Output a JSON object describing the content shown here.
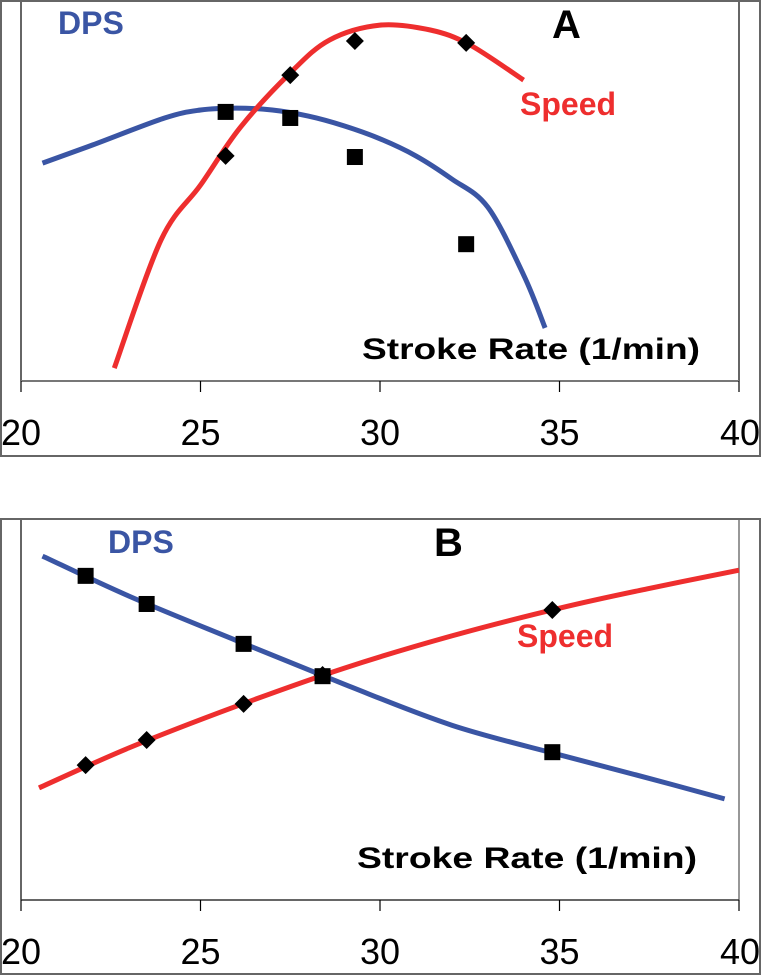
{
  "chart_data": [
    {
      "type": "line",
      "panel_label": "A",
      "xlabel": "Stroke Rate (1/min)",
      "ylabel": "",
      "xlim": [
        20,
        40
      ],
      "ylim": [
        0,
        100
      ],
      "y_units": "relative (no y-axis scale shown)",
      "x_ticks": [
        "20",
        "25",
        "30",
        "35",
        "40"
      ],
      "x_tick_values": [
        20,
        25,
        30,
        35,
        40
      ],
      "grid": false,
      "series": [
        {
          "name": "DPS",
          "color": "#3a55a4",
          "marker": "square",
          "points": [
            {
              "x": 25.7,
              "y": 71.0
            },
            {
              "x": 27.5,
              "y": 69.4
            },
            {
              "x": 29.3,
              "y": 59.1
            },
            {
              "x": 32.4,
              "y": 36.1
            }
          ],
          "curve": [
            {
              "x": 20.6,
              "y": 57.5
            },
            {
              "x": 22.0,
              "y": 62.3
            },
            {
              "x": 24.0,
              "y": 69.4
            },
            {
              "x": 25.0,
              "y": 71.5
            },
            {
              "x": 26.0,
              "y": 72.0
            },
            {
              "x": 27.0,
              "y": 71.5
            },
            {
              "x": 28.0,
              "y": 69.9
            },
            {
              "x": 29.0,
              "y": 67.3
            },
            {
              "x": 30.0,
              "y": 63.9
            },
            {
              "x": 31.0,
              "y": 59.4
            },
            {
              "x": 32.0,
              "y": 53.3
            },
            {
              "x": 33.0,
              "y": 45.9
            },
            {
              "x": 34.0,
              "y": 28.0
            },
            {
              "x": 34.6,
              "y": 14.0
            }
          ]
        },
        {
          "name": "Speed",
          "color": "#ee2e2e",
          "marker": "diamond",
          "points": [
            {
              "x": 25.7,
              "y": 59.4
            },
            {
              "x": 27.5,
              "y": 80.7
            },
            {
              "x": 29.3,
              "y": 89.7
            },
            {
              "x": 32.4,
              "y": 89.2
            }
          ],
          "curve": [
            {
              "x": 22.6,
              "y": 3.4
            },
            {
              "x": 23.9,
              "y": 37.2
            },
            {
              "x": 25.0,
              "y": 51.7
            },
            {
              "x": 26.1,
              "y": 66.8
            },
            {
              "x": 27.5,
              "y": 81.3
            },
            {
              "x": 28.6,
              "y": 90.0
            },
            {
              "x": 30.0,
              "y": 93.9
            },
            {
              "x": 31.4,
              "y": 92.6
            },
            {
              "x": 32.5,
              "y": 88.7
            },
            {
              "x": 34.0,
              "y": 79.4
            }
          ]
        }
      ],
      "annotations": [
        "DPS",
        "Speed",
        "A",
        "Stroke Rate (1/min)"
      ]
    },
    {
      "type": "line",
      "panel_label": "B",
      "xlabel": "Stroke Rate (1/min)",
      "ylabel": "",
      "xlim": [
        20,
        40
      ],
      "ylim": [
        0,
        100
      ],
      "y_units": "relative (no y-axis scale shown)",
      "x_ticks": [
        "20",
        "25",
        "30",
        "35",
        "40"
      ],
      "x_tick_values": [
        20,
        25,
        30,
        35,
        40
      ],
      "grid": false,
      "series": [
        {
          "name": "DPS",
          "color": "#3a55a4",
          "marker": "square",
          "points": [
            {
              "x": 21.8,
              "y": 85.3
            },
            {
              "x": 23.5,
              "y": 77.9
            },
            {
              "x": 26.2,
              "y": 67.4
            },
            {
              "x": 28.4,
              "y": 58.9
            },
            {
              "x": 34.8,
              "y": 38.9
            }
          ],
          "curve": [
            {
              "x": 20.6,
              "y": 90.5
            },
            {
              "x": 23.0,
              "y": 80.0
            },
            {
              "x": 26.0,
              "y": 68.3
            },
            {
              "x": 29.0,
              "y": 56.8
            },
            {
              "x": 32.0,
              "y": 46.0
            },
            {
              "x": 35.0,
              "y": 38.2
            },
            {
              "x": 37.5,
              "y": 32.0
            },
            {
              "x": 39.6,
              "y": 26.6
            }
          ]
        },
        {
          "name": "Speed",
          "color": "#ee2e2e",
          "marker": "diamond",
          "points": [
            {
              "x": 21.8,
              "y": 35.5
            },
            {
              "x": 23.5,
              "y": 42.1
            },
            {
              "x": 26.2,
              "y": 51.6
            },
            {
              "x": 28.4,
              "y": 59.2
            },
            {
              "x": 34.8,
              "y": 76.3
            }
          ],
          "curve": [
            {
              "x": 20.5,
              "y": 29.5
            },
            {
              "x": 23.0,
              "y": 40.0
            },
            {
              "x": 26.0,
              "y": 51.0
            },
            {
              "x": 29.0,
              "y": 61.0
            },
            {
              "x": 32.0,
              "y": 69.5
            },
            {
              "x": 35.0,
              "y": 76.8
            },
            {
              "x": 37.5,
              "y": 82.0
            },
            {
              "x": 40.0,
              "y": 86.8
            }
          ]
        }
      ],
      "annotations": [
        "DPS",
        "Speed",
        "B",
        "Stroke Rate (1/min)"
      ]
    }
  ],
  "labels": {
    "a": {
      "panel": "A",
      "dps": "DPS",
      "speed": "Speed",
      "xlabel": "Stroke Rate (1/min)"
    },
    "b": {
      "panel": "B",
      "dps": "DPS",
      "speed": "Speed",
      "xlabel": "Stroke Rate (1/min)"
    }
  }
}
